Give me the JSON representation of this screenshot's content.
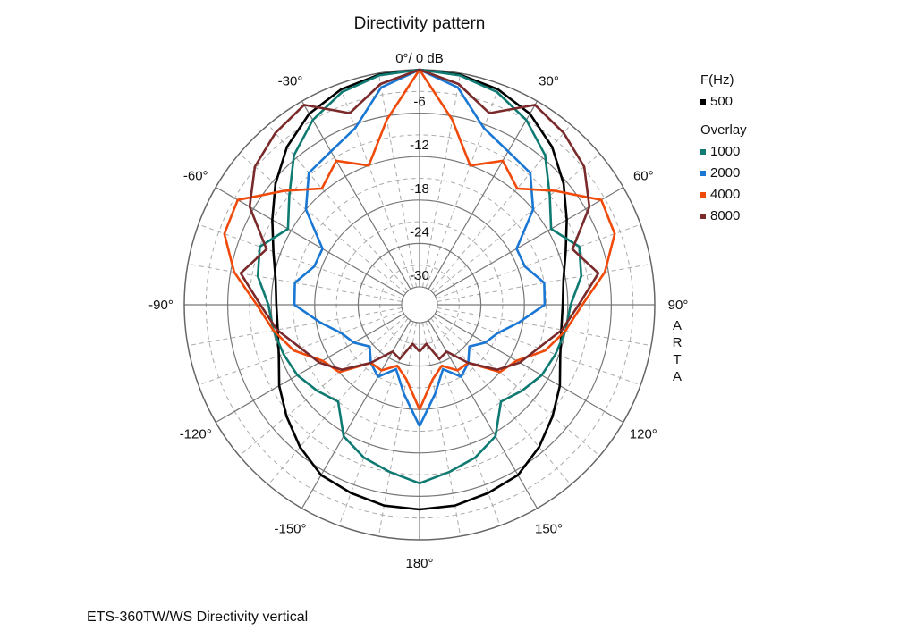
{
  "chart_data": {
    "type": "polar-line",
    "title": "Directivity pattern",
    "radial_unit": "dB",
    "radial_range": [
      -30,
      0
    ],
    "radial_ticks": [
      -6,
      -12,
      -18,
      -24,
      -30
    ],
    "top_label": "0°/ 0 dB",
    "angle_labels": [
      {
        "angle": 30,
        "label": "30°"
      },
      {
        "angle": 60,
        "label": "60°"
      },
      {
        "angle": 90,
        "label": "90°"
      },
      {
        "angle": 120,
        "label": "120°"
      },
      {
        "angle": 150,
        "label": "150°"
      },
      {
        "angle": 180,
        "label": "180°"
      },
      {
        "angle": -150,
        "label": "-150°"
      },
      {
        "angle": -120,
        "label": "-120°"
      },
      {
        "angle": -90,
        "label": "-90°"
      },
      {
        "angle": -60,
        "label": "-60°"
      },
      {
        "angle": -30,
        "label": "-30°"
      }
    ],
    "grid": true,
    "legend_position": "right",
    "angles": [
      -180,
      -170,
      -160,
      -150,
      -140,
      -130,
      -120,
      -110,
      -100,
      -90,
      -80,
      -70,
      -60,
      -50,
      -40,
      -30,
      -20,
      -10,
      0,
      10,
      20,
      30,
      40,
      50,
      60,
      70,
      80,
      90,
      100,
      110,
      120,
      130,
      140,
      150,
      160,
      170,
      180
    ],
    "series": [
      {
        "name": "500",
        "color": "#000000",
        "values": [
          -4.2,
          -4.3,
          -4.8,
          -5.3,
          -6.8,
          -8.5,
          -10.1,
          -11.8,
          -12.6,
          -12.7,
          -12.3,
          -11,
          -9,
          -6.5,
          -4,
          -2,
          -0.8,
          -0.2,
          0,
          -0.2,
          -0.8,
          -2,
          -4,
          -6.5,
          -9,
          -11,
          -12.3,
          -12.7,
          -12.6,
          -11.8,
          -10.1,
          -8.5,
          -6.8,
          -5.3,
          -4.8,
          -4.3,
          -4.2
        ]
      },
      {
        "name": "1000",
        "color": "#0e7a72",
        "values": [
          -7.8,
          -9,
          -10,
          -11.5,
          -15,
          -14,
          -13,
          -12.5,
          -12,
          -11.6,
          -9.8,
          -9,
          -11.5,
          -9,
          -5.5,
          -3,
          -1.2,
          -0.3,
          0,
          -0.3,
          -1.2,
          -3,
          -5.5,
          -9,
          -11.5,
          -9,
          -9.8,
          -11.6,
          -12,
          -12.5,
          -13,
          -14,
          -15,
          -11.5,
          -10,
          -9,
          -7.8
        ]
      },
      {
        "name": "2000",
        "color": "#1a78d4",
        "values": [
          -15.7,
          -20,
          -23,
          -21,
          -22,
          -23.5,
          -22,
          -21,
          -18.5,
          -15.2,
          -15,
          -17,
          -17,
          -12,
          -8.7,
          -8,
          -6.5,
          -2,
          0,
          -2,
          -6.5,
          -8,
          -8.7,
          -12,
          -17,
          -17,
          -15,
          -15.2,
          -18.5,
          -21,
          -22,
          -23.5,
          -22,
          -21,
          -23,
          -20,
          -15.7
        ]
      },
      {
        "name": "4000",
        "color": "#f04a0a",
        "values": [
          -18,
          -22,
          -23.5,
          -22,
          -22,
          -18,
          -17,
          -14,
          -12,
          -10,
          -6.5,
          -3.8,
          -3.5,
          -8,
          -11.5,
          -9.5,
          -12,
          -6.5,
          0,
          -6.5,
          -12,
          -9.5,
          -11.5,
          -8,
          -3.5,
          -3.8,
          -6.5,
          -10,
          -12,
          -14,
          -17,
          -18,
          -22,
          -22,
          -23.5,
          -22,
          -18
        ]
      },
      {
        "name": "8000",
        "color": "#7a2a2a",
        "values": [
          -26,
          -27,
          -24.5,
          -25,
          -22,
          -18.5,
          -16.5,
          -15,
          -12.5,
          -10.5,
          -7.4,
          -10,
          -5.4,
          -2.8,
          -1.5,
          -0.6,
          -4.3,
          -1.5,
          0,
          -1.5,
          -4.3,
          -0.6,
          -1.5,
          -2.8,
          -5.4,
          -10,
          -7.4,
          -10.5,
          -12.5,
          -15,
          -16.5,
          -18.5,
          -22,
          -25,
          -24.5,
          -27,
          -26
        ]
      }
    ]
  },
  "legend": {
    "header": "F(Hz)",
    "overlay_header": "Overlay"
  },
  "side_label": "ARTA",
  "footer": "ETS-360TW/WS  Directivity vertical"
}
